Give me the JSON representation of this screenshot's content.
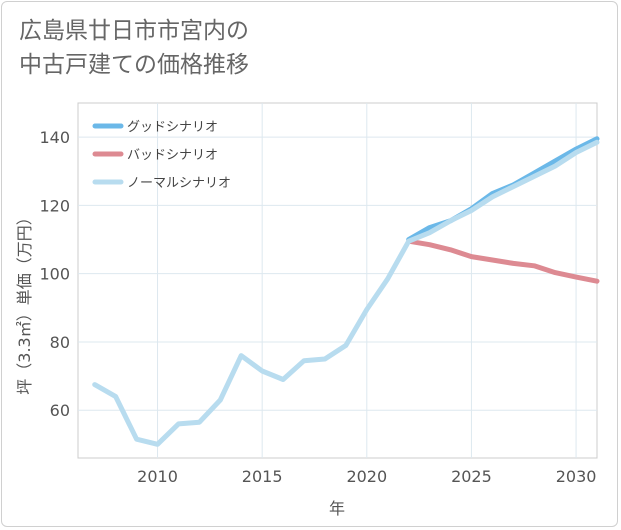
{
  "title_lines": [
    "広島県廿日市市宮内の",
    "中古戸建ての価格推移"
  ],
  "chart_data": {
    "type": "line",
    "title": "広島県廿日市市宮内の中古戸建ての価格推移",
    "xlabel": "年",
    "ylabel": "坪（3.3㎡）単価（万円）",
    "xlim": [
      2006.2,
      2031
    ],
    "ylim": [
      46,
      150
    ],
    "x_ticks": [
      2010,
      2015,
      2020,
      2025,
      2030
    ],
    "y_ticks": [
      60,
      80,
      100,
      120,
      140
    ],
    "grid": true,
    "legend_position": "top-left",
    "series": [
      {
        "name": "グッドシナリオ",
        "color": "#6bb8e8",
        "x": [
          2022,
          2023,
          2024,
          2025,
          2026,
          2027,
          2028,
          2029,
          2030,
          2031
        ],
        "values": [
          110,
          113.5,
          115.5,
          119,
          123.5,
          126,
          129.5,
          133,
          136.5,
          139.5
        ]
      },
      {
        "name": "バッドシナリオ",
        "color": "#dd8a92",
        "x": [
          2022,
          2023,
          2024,
          2025,
          2026,
          2027,
          2028,
          2029,
          2030,
          2031
        ],
        "values": [
          109.5,
          108.5,
          107,
          105,
          104,
          103,
          102.3,
          100.3,
          99,
          97.8
        ]
      },
      {
        "name": "ノーマルシナリオ",
        "color": "#b8dcef",
        "x": [
          2007,
          2008,
          2009,
          2010,
          2011,
          2012,
          2013,
          2014,
          2015,
          2016,
          2017,
          2018,
          2019,
          2020,
          2021,
          2022,
          2023,
          2024,
          2025,
          2026,
          2027,
          2028,
          2029,
          2030,
          2031
        ],
        "values": [
          67.5,
          64,
          51.5,
          50,
          56,
          56.5,
          63,
          76,
          71.5,
          69,
          74.5,
          75,
          79,
          89.5,
          98.5,
          109.5,
          112,
          115.5,
          118.5,
          122.5,
          125.5,
          128.5,
          131.5,
          135.5,
          138.5
        ]
      }
    ]
  }
}
